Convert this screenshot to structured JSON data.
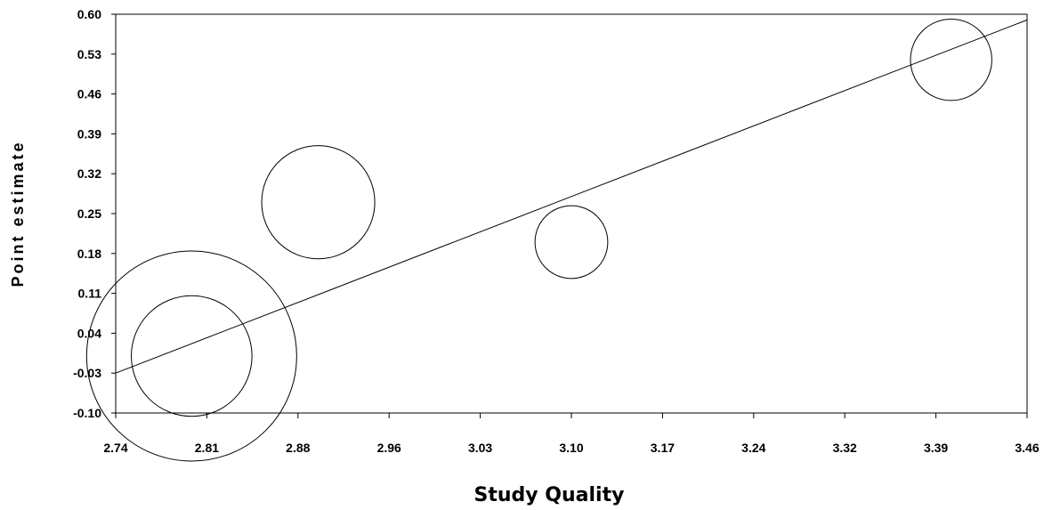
{
  "chart_data": {
    "type": "scatter",
    "xlabel": "Study Quality",
    "ylabel": "Point estimate",
    "xlim": [
      2.74,
      3.46
    ],
    "ylim": [
      -0.1,
      0.6
    ],
    "x_ticks": [
      "2.74",
      "2.81",
      "2.88",
      "2.96",
      "3.03",
      "3.10",
      "3.17",
      "3.24",
      "3.32",
      "3.39",
      "3.46"
    ],
    "y_ticks": [
      "0.60",
      "0.53",
      "0.46",
      "0.39",
      "0.32",
      "0.25",
      "0.18",
      "0.11",
      "0.04",
      "-0.03",
      "-0.10"
    ],
    "points": [
      {
        "x": 2.8,
        "y": 0.0,
        "weight": 1.0
      },
      {
        "x": 2.8,
        "y": 0.0,
        "weight": 0.33
      },
      {
        "x": 2.9,
        "y": 0.27,
        "weight": 0.29
      },
      {
        "x": 3.1,
        "y": 0.2,
        "weight": 0.12
      },
      {
        "x": 3.4,
        "y": 0.52,
        "weight": 0.15
      }
    ],
    "regression_line": {
      "x": [
        2.74,
        3.46
      ],
      "y": [
        -0.03,
        0.59
      ]
    },
    "grid": false,
    "legend": "none"
  }
}
